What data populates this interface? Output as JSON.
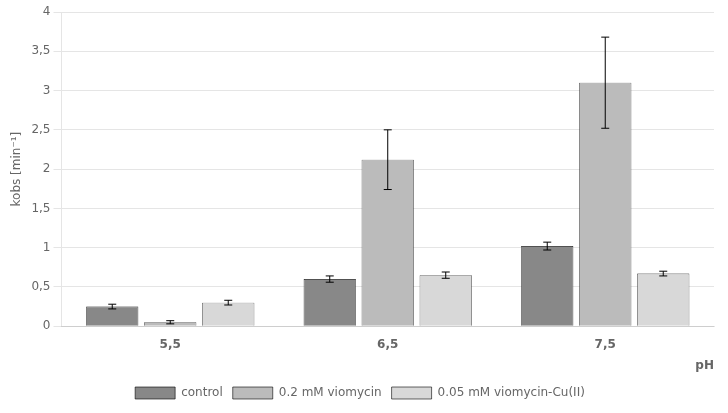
{
  "chart_data": {
    "type": "bar",
    "categories": [
      "5,5",
      "6,5",
      "7,5"
    ],
    "series": [
      {
        "name": "control",
        "color": "#888888",
        "values": [
          0.25,
          0.6,
          1.02
        ],
        "errors": [
          0.03,
          0.04,
          0.05
        ]
      },
      {
        "name": "0.2 mM viomycin",
        "color": "#bbbbbb",
        "values": [
          0.05,
          2.12,
          3.1
        ],
        "errors": [
          0.02,
          0.38,
          0.58
        ]
      },
      {
        "name": "0.05 mM viomycin-Cu(II)",
        "color": "#d8d8d8",
        "values": [
          0.3,
          0.65,
          0.67
        ],
        "errors": [
          0.03,
          0.04,
          0.03
        ]
      }
    ],
    "xlabel": "pH",
    "ylabel": "kobs [min⁻¹]",
    "ylim": [
      0,
      4
    ],
    "yticks": [
      0,
      {
        "value": 0.5,
        "label": "0,5"
      },
      1,
      {
        "value": 1.5,
        "label": "1,5"
      },
      2,
      {
        "value": 2.5,
        "label": "2,5"
      },
      3,
      {
        "value": 3.5,
        "label": "3,5"
      },
      4
    ],
    "grid": true,
    "legend": "bottom"
  }
}
